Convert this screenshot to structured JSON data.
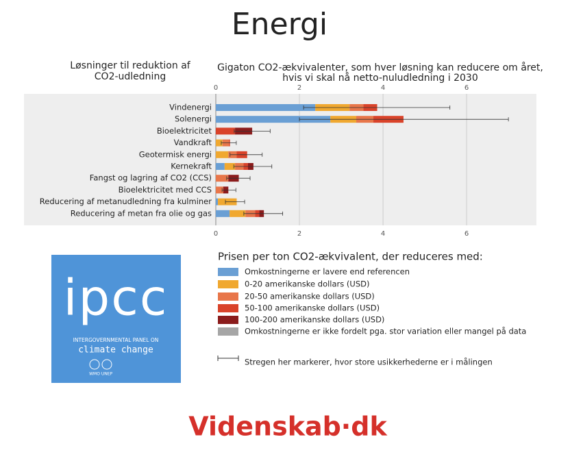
{
  "page_title": "Energi",
  "chart_data": {
    "type": "bar",
    "orientation": "horizontal",
    "stacked": true,
    "title": [
      "Gigaton CO2-ækvivalenter, som hver løsning kan reducere om året,",
      "hvis vi skal nå netto-nuludledning i 2030"
    ],
    "ylabel": [
      "Løsninger til reduktion af",
      "CO2-udledning"
    ],
    "categories": [
      "Vindenergi",
      "Solenergi",
      "Bioelektricitet",
      "Vandkraft",
      "Geotermisk energi",
      "Kernekraft",
      "Fangst og lagring af CO2 (CCS)",
      "Bioelektricitet med CCS",
      "Reducering af metanudledning fra kulminer",
      "Reducering af metan fra olie og gas"
    ],
    "series": [
      {
        "name": "Omkostningerne er lavere end referencen",
        "color": "#6a9fd4",
        "values": [
          2.38,
          2.74,
          0,
          0,
          0,
          0.21,
          0,
          0,
          0.05,
          0.33
        ]
      },
      {
        "name": "0-20 amerikanske dollars (USD)",
        "color": "#f0a830",
        "values": [
          0.82,
          0.62,
          0,
          0.16,
          0.3,
          0.25,
          0,
          0,
          0.45,
          0.38
        ]
      },
      {
        "name": "20-50 amerikanske dollars (USD)",
        "color": "#e8764a",
        "values": [
          0.33,
          0.41,
          0,
          0.16,
          0.2,
          0.2,
          0.3,
          0.18,
          0,
          0.23
        ]
      },
      {
        "name": "50-100 amerikanske dollars (USD)",
        "color": "#d9432a",
        "values": [
          0.33,
          0.72,
          0.46,
          0.02,
          0.25,
          0.11,
          0,
          0,
          0,
          0.1
        ]
      },
      {
        "name": "100-200 amerikanske dollars (USD)",
        "color": "#8b1c1c",
        "values": [
          0,
          0,
          0.41,
          0,
          0,
          0.13,
          0.25,
          0.12,
          0,
          0.11
        ]
      },
      {
        "name": "Omkostningerne er ikke fordelt pga. stor variation eller mangel på data",
        "color": "#a6a6a6",
        "values": [
          0,
          0,
          0,
          0,
          0,
          0,
          0,
          0,
          0,
          0
        ]
      }
    ],
    "errors": [
      [
        2.1,
        5.6
      ],
      [
        2.0,
        7.0
      ],
      [
        0.44,
        1.3
      ],
      [
        0.13,
        0.49
      ],
      [
        0.34,
        1.11
      ],
      [
        0.43,
        1.34
      ],
      [
        0.26,
        0.82
      ],
      [
        0.15,
        0.48
      ],
      [
        0.23,
        0.69
      ],
      [
        0.67,
        1.6
      ]
    ],
    "xlim": [
      0,
      7.67
    ],
    "xticks": [
      0,
      2,
      4,
      6
    ],
    "grid": true,
    "legend_title": "Prisen per ton CO2-ækvivalent, der reduceres med:",
    "error_note": "Stregen her markerer, hvor store usikkerhederne er i målingen"
  },
  "logo": {
    "name": "ipcc",
    "line1": "INTERGOVERNMENTAL PANEL ON",
    "line2": "climate change",
    "orgs": [
      "WMO",
      "UNEP"
    ]
  },
  "footer": "Videnskab·dk"
}
